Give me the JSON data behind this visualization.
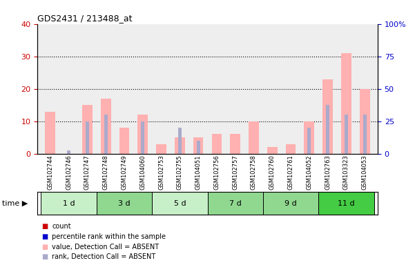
{
  "title": "GDS2431 / 213488_at",
  "samples": [
    "GSM102744",
    "GSM102746",
    "GSM102747",
    "GSM102748",
    "GSM102749",
    "GSM104060",
    "GSM102753",
    "GSM102755",
    "GSM104051",
    "GSM102756",
    "GSM102757",
    "GSM102758",
    "GSM102760",
    "GSM102761",
    "GSM104052",
    "GSM102763",
    "GSM103323",
    "GSM104053"
  ],
  "groups": [
    {
      "label": "1 d",
      "color": "#c8f0c8",
      "samples": [
        "GSM102744",
        "GSM102746",
        "GSM102747"
      ]
    },
    {
      "label": "3 d",
      "color": "#90d890",
      "samples": [
        "GSM102748",
        "GSM102749",
        "GSM104060"
      ]
    },
    {
      "label": "5 d",
      "color": "#c8f0c8",
      "samples": [
        "GSM102753",
        "GSM102755",
        "GSM104051"
      ]
    },
    {
      "label": "7 d",
      "color": "#90d890",
      "samples": [
        "GSM102756",
        "GSM102757",
        "GSM102758"
      ]
    },
    {
      "label": "9 d",
      "color": "#90d890",
      "samples": [
        "GSM102760",
        "GSM102761",
        "GSM104052"
      ]
    },
    {
      "label": "11 d",
      "color": "#44cc44",
      "samples": [
        "GSM102763",
        "GSM103323",
        "GSM104053"
      ]
    }
  ],
  "pink_bars": [
    13,
    0,
    15,
    17,
    8,
    12,
    3,
    5,
    5,
    6,
    6,
    10,
    2,
    3,
    10,
    23,
    31,
    20
  ],
  "blue_bars": [
    0,
    1,
    10,
    12,
    0,
    10,
    0,
    8,
    4,
    0,
    0,
    0,
    0,
    0,
    8,
    15,
    12,
    12
  ],
  "ylim_left": [
    0,
    40
  ],
  "ylim_right": [
    0,
    100
  ],
  "yticks_left": [
    0,
    10,
    20,
    30,
    40
  ],
  "yticks_right": [
    0,
    25,
    50,
    75,
    100
  ],
  "ytick_labels_right": [
    "0",
    "25",
    "50",
    "75",
    "100%"
  ],
  "ylabel_left_color": "#cc0000",
  "ylabel_right_color": "#0000cc",
  "grid_lines": [
    10,
    20,
    30
  ],
  "pink_color": "#ffb0b0",
  "blue_color": "#aaaacc",
  "bg_plot": "#eeeeee",
  "legend_items": [
    {
      "color": "#cc0000",
      "label": "count"
    },
    {
      "color": "#0000cc",
      "label": "percentile rank within the sample"
    },
    {
      "color": "#ffb0b0",
      "label": "value, Detection Call = ABSENT"
    },
    {
      "color": "#aaaacc",
      "label": "rank, Detection Call = ABSENT"
    }
  ]
}
